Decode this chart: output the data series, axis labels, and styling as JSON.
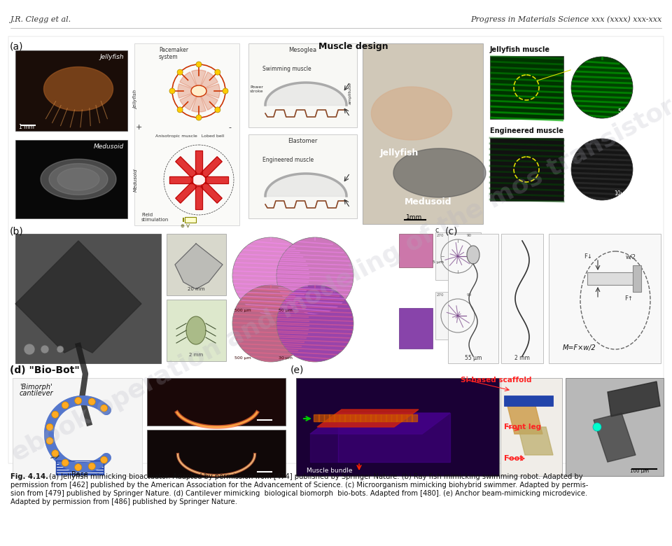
{
  "header_left": "J.R. Clegg et al.",
  "header_right": "Progress in Materials Science xxx (xxxx) xxx-xxx",
  "caption_bold": "Fig. 4.14.",
  "caption_text": " (a) Jellyfish mimicking bioactuator. Adapted by permission from [474] published by Springer Nature. (b) Ray fish mimicking swimming robot. Adapted by permission from [462] published by the American Association for the Advancement of Science. (c) Microorganism mimicking biohybrid swimmer. Adapted by permis-sion from [479] published by Springer Nature. (d) Cantilever mimicking  biological biomorph  bio-bots. Adapted from [480]. (e) Anchor beam-mimicking microdevice. Adapted by permission from [486] published by Springer Nature.",
  "caption_line1": "Fig. 4.14.  (a) Jellyfish mimicking bioactuator. Adapted by permission from [474] published by Springer Nature. (b) Ray fish mimicking swimming robot. Adapted by",
  "caption_line2": "permission from [462] published by the American Association for the Advancement of Science. (c) Microorganism mimicking biohybrid swimmer. Adapted by permis-",
  "caption_line3": "sion from [479] published by Springer Nature. (d) Cantilever mimicking  biological biomorph  bio-bots. Adapted from [480]. (e) Anchor beam-mimicking microdevice.",
  "caption_line4": "Adapted by permission from [486] published by Springer Nature.",
  "bg_color": "#ffffff",
  "text_color": "#111111",
  "header_color": "#333333",
  "watermark_text": "ebook operation and modeling of the mos transistor",
  "watermark_color": "#b0b0be",
  "watermark_alpha": 0.22
}
